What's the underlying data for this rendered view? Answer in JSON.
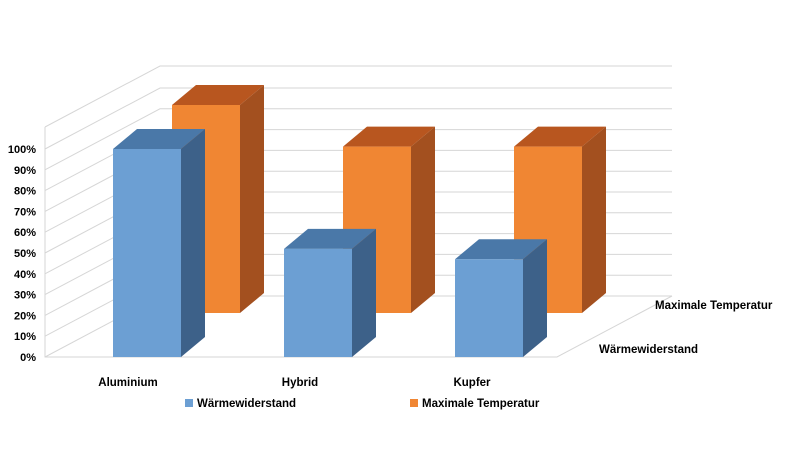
{
  "chart_data": {
    "type": "bar",
    "categories": [
      "Aluminium",
      "Hybrid",
      "Kupfer"
    ],
    "series": [
      {
        "name": "Wärmewiderstand",
        "values": [
          100,
          52,
          47
        ]
      },
      {
        "name": "Maximale Temperatur",
        "values": [
          100,
          80,
          80
        ]
      }
    ],
    "ylim": [
      0,
      100
    ],
    "y_ticks": [
      "0%",
      "10%",
      "20%",
      "30%",
      "40%",
      "50%",
      "60%",
      "70%",
      "80%",
      "90%",
      "100%"
    ],
    "depth_labels": [
      "Maximale Temperatur",
      "Wärmewiderstand"
    ],
    "legend": {
      "placement": "bottom",
      "entries": [
        "Wärmewiderstand",
        "Maximale Temperatur"
      ]
    },
    "grid": true,
    "title": "",
    "xlabel": "",
    "ylabel": ""
  },
  "colors": {
    "series_front": {
      "face": "#6c9fd3",
      "top": "#4a78a8",
      "side": "#3d6189"
    },
    "series_back": {
      "face": "#f08633",
      "top": "#b8561f",
      "side": "#a3501f"
    },
    "gridline": "#d6d6d6"
  }
}
